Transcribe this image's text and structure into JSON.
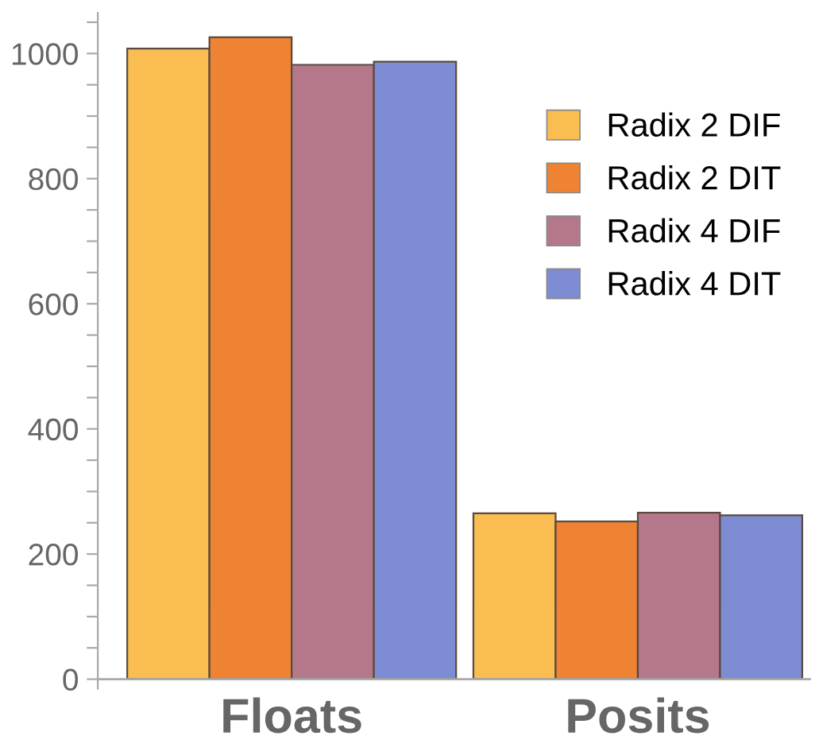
{
  "chart_data": {
    "type": "bar",
    "categories": [
      "Floats",
      "Posits"
    ],
    "series": [
      {
        "name": "Radix 2 DIF",
        "color": "#f9bd51",
        "values": [
          1008,
          265
        ]
      },
      {
        "name": "Radix 2 DIT",
        "color": "#ed8333",
        "values": [
          1026,
          252
        ]
      },
      {
        "name": "Radix 4 DIF",
        "color": "#b5788a",
        "values": [
          982,
          266
        ]
      },
      {
        "name": "Radix 4 DIT",
        "color": "#7e8cd3",
        "values": [
          987,
          262
        ]
      }
    ],
    "ylim": [
      -15,
      1065
    ],
    "yticks": [
      0,
      {
        "value": 50,
        "label": null
      },
      {
        "value": 100,
        "label": null
      },
      {
        "value": 150,
        "label": null
      },
      200,
      {
        "value": 250,
        "label": null
      },
      {
        "value": 300,
        "label": null
      },
      {
        "value": 350,
        "label": null
      },
      400,
      {
        "value": 450,
        "label": null
      },
      {
        "value": 500,
        "label": null
      },
      {
        "value": 550,
        "label": null
      },
      600,
      {
        "value": 650,
        "label": null
      },
      {
        "value": 700,
        "label": null
      },
      {
        "value": 750,
        "label": null
      },
      800,
      {
        "value": 850,
        "label": null
      },
      {
        "value": 900,
        "label": null
      },
      {
        "value": 950,
        "label": null
      },
      1000,
      {
        "value": 1050,
        "label": null
      }
    ],
    "grid": false,
    "legend": "top right"
  }
}
